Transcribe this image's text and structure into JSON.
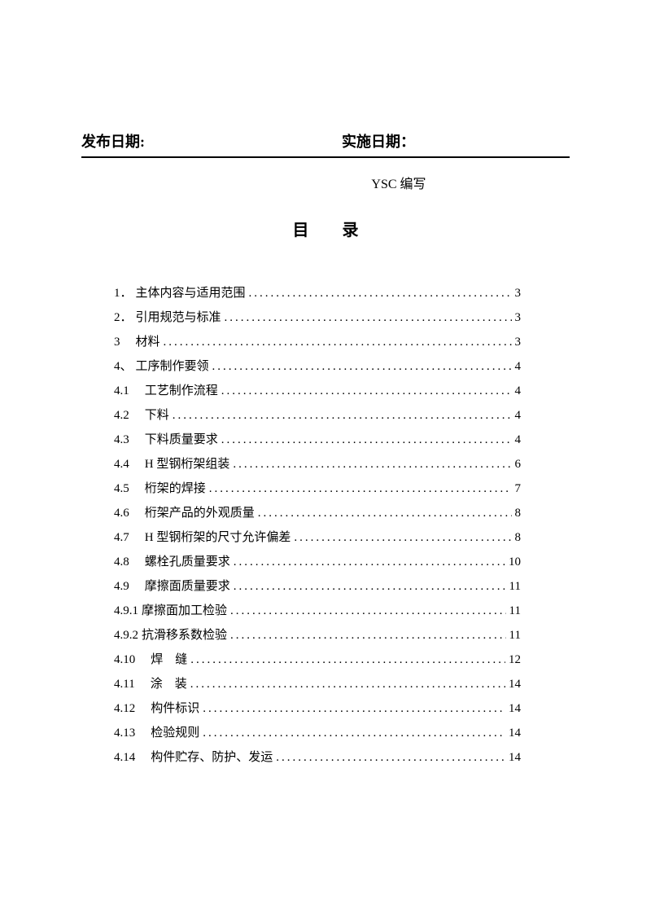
{
  "header": {
    "publish_label": "发布日期:",
    "implement_label": "实施日期："
  },
  "author": "YSC 编写",
  "toc_title": "目 录",
  "toc": [
    {
      "num": "1．",
      "label": "主体内容与适用范围",
      "page": "3"
    },
    {
      "num": "2．",
      "label": "引用规范与标准",
      "page": "3"
    },
    {
      "num": "3　",
      "label": "材料",
      "page": "3"
    },
    {
      "num": "4、",
      "label": " 工序制作要领",
      "page": "4"
    },
    {
      "num": "4.1",
      "label": "　工艺制作流程",
      "page": "4"
    },
    {
      "num": "4.2",
      "label": "　下料",
      "page": "4"
    },
    {
      "num": "4.3",
      "label": "　下料质量要求",
      "page": "4"
    },
    {
      "num": "4.4",
      "label": "　H 型钢桁架组装",
      "page": "6"
    },
    {
      "num": "4.5",
      "label": "　桁架的焊接",
      "page": "7"
    },
    {
      "num": "4.6",
      "label": "　桁架产品的外观质量",
      "page": "8"
    },
    {
      "num": "4.7",
      "label": "　H 型钢桁架的尺寸允许偏差",
      "page": "8"
    },
    {
      "num": "4.8",
      "label": "　螺栓孔质量要求",
      "page": "10"
    },
    {
      "num": "4.9",
      "label": "　摩擦面质量要求",
      "page": "11"
    },
    {
      "num": "4.9.1",
      "label": " 摩擦面加工检验",
      "page": "11"
    },
    {
      "num": "4.9.2",
      "label": " 抗滑移系数检验",
      "page": "11"
    },
    {
      "num": "4.10",
      "label": "　焊　缝",
      "page": "12"
    },
    {
      "num": "4.11",
      "label": "　涂　装",
      "page": "14"
    },
    {
      "num": "4.12",
      "label": "　构件标识",
      "page": "14"
    },
    {
      "num": "4.13",
      "label": "　检验规则",
      "page": "14"
    },
    {
      "num": "4.14",
      "label": "　构件贮存、防护、发运",
      "page": "14"
    }
  ]
}
